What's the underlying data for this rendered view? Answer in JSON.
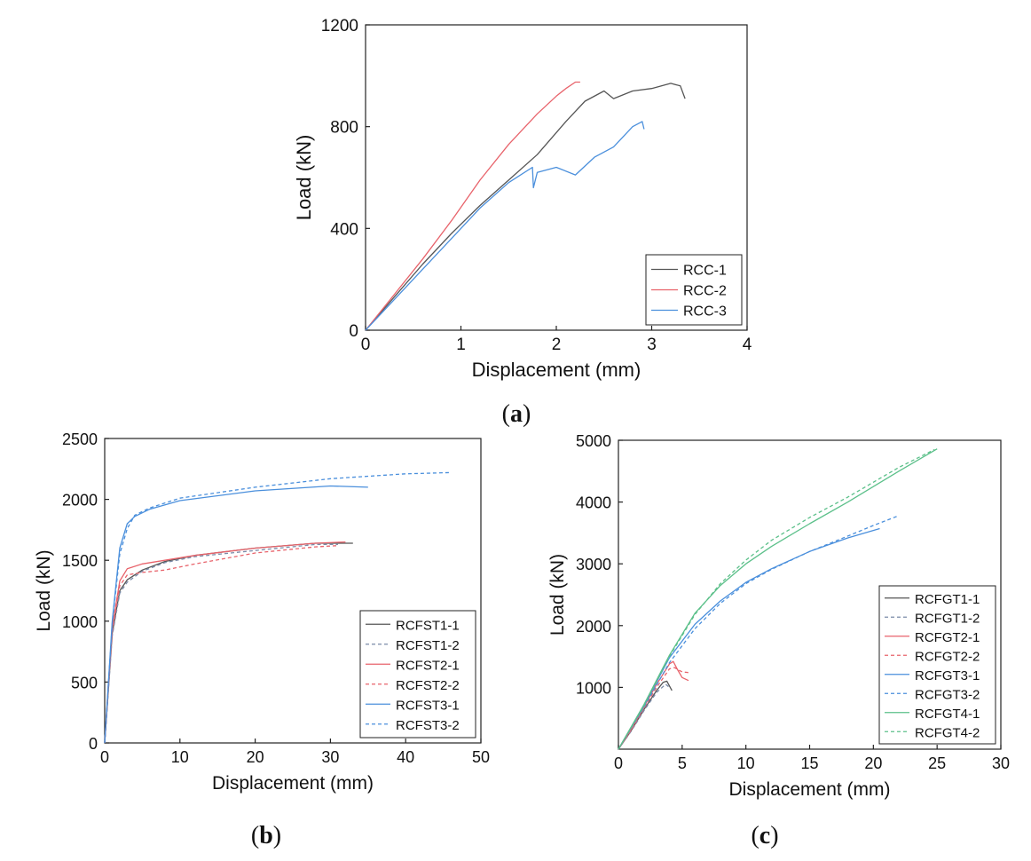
{
  "figure_labels": [
    "(a)",
    "(b)",
    "(c)"
  ],
  "chart_data": [
    {
      "id": "a",
      "type": "line",
      "panel_label": "(a)",
      "xlabel": "Displacement (mm)",
      "ylabel": "Load (kN)",
      "xlim": [
        0,
        4
      ],
      "ylim": [
        0,
        1200
      ],
      "xticks": [
        0,
        1,
        2,
        3,
        4
      ],
      "yticks": [
        0,
        400,
        800,
        1200
      ],
      "legend_position": "bottom-right",
      "series": [
        {
          "name": "RCC-1",
          "color": "#555555",
          "dash": "solid",
          "x": [
            0,
            0.3,
            0.6,
            0.9,
            1.2,
            1.5,
            1.8,
            2.1,
            2.3,
            2.5,
            2.6,
            2.8,
            3.0,
            3.2,
            3.3,
            3.35
          ],
          "y": [
            0,
            130,
            260,
            380,
            490,
            590,
            690,
            820,
            900,
            940,
            910,
            940,
            950,
            970,
            960,
            910
          ]
        },
        {
          "name": "RCC-2",
          "color": "#e8636b",
          "dash": "solid",
          "x": [
            0,
            0.3,
            0.6,
            0.9,
            1.2,
            1.5,
            1.8,
            2.0,
            2.1,
            2.2,
            2.25
          ],
          "y": [
            0,
            140,
            280,
            430,
            590,
            730,
            850,
            920,
            950,
            975,
            975
          ]
        },
        {
          "name": "RCC-3",
          "color": "#4a8fdc",
          "dash": "solid",
          "x": [
            0,
            0.3,
            0.6,
            0.9,
            1.2,
            1.5,
            1.75,
            1.76,
            1.8,
            2.0,
            2.2,
            2.4,
            2.45,
            2.6,
            2.8,
            2.9,
            2.92
          ],
          "y": [
            0,
            120,
            240,
            360,
            480,
            580,
            640,
            560,
            620,
            640,
            610,
            680,
            690,
            720,
            800,
            820,
            790
          ]
        }
      ]
    },
    {
      "id": "b",
      "type": "line",
      "panel_label": "(b)",
      "xlabel": "Displacement (mm)",
      "ylabel": "Load (kN)",
      "xlim": [
        0,
        50
      ],
      "ylim": [
        0,
        2500
      ],
      "xticks": [
        0,
        10,
        20,
        30,
        40,
        50
      ],
      "yticks": [
        0,
        500,
        1000,
        1500,
        2000,
        2500
      ],
      "legend_position": "bottom-right",
      "series": [
        {
          "name": "RCFST1-1",
          "color": "#555555",
          "dash": "solid",
          "x": [
            0,
            0.5,
            1,
            2,
            3,
            5,
            8,
            12,
            20,
            28,
            33
          ],
          "y": [
            0,
            450,
            900,
            1250,
            1340,
            1420,
            1490,
            1540,
            1600,
            1640,
            1640
          ]
        },
        {
          "name": "RCFST1-2",
          "color": "#7a8aa8",
          "dash": "dashed",
          "x": [
            0,
            0.5,
            1,
            2,
            3,
            5,
            8,
            12,
            20,
            28,
            31
          ],
          "y": [
            0,
            430,
            880,
            1230,
            1320,
            1410,
            1480,
            1530,
            1580,
            1630,
            1630
          ]
        },
        {
          "name": "RCFST2-1",
          "color": "#e8636b",
          "dash": "solid",
          "x": [
            0,
            0.5,
            1,
            2,
            3,
            5,
            8,
            12,
            20,
            28,
            32
          ],
          "y": [
            0,
            480,
            950,
            1330,
            1430,
            1470,
            1500,
            1540,
            1600,
            1640,
            1650
          ]
        },
        {
          "name": "RCFST2-2",
          "color": "#e8636b",
          "dash": "dashed",
          "x": [
            0,
            0.5,
            1,
            2,
            3,
            5,
            8,
            12,
            20,
            28,
            31
          ],
          "y": [
            0,
            460,
            920,
            1290,
            1380,
            1400,
            1420,
            1470,
            1560,
            1610,
            1620
          ]
        },
        {
          "name": "RCFST3-1",
          "color": "#4a8fdc",
          "dash": "solid",
          "x": [
            0,
            0.5,
            1,
            2,
            3,
            4,
            6,
            10,
            20,
            30,
            35
          ],
          "y": [
            0,
            500,
            1000,
            1600,
            1800,
            1860,
            1920,
            1990,
            2070,
            2110,
            2100
          ]
        },
        {
          "name": "RCFST3-2",
          "color": "#4a8fdc",
          "dash": "dashed",
          "x": [
            0,
            0.5,
            1,
            2,
            3,
            4,
            6,
            10,
            20,
            30,
            40,
            46
          ],
          "y": [
            0,
            480,
            980,
            1550,
            1760,
            1870,
            1930,
            2010,
            2100,
            2170,
            2210,
            2220
          ]
        }
      ]
    },
    {
      "id": "c",
      "type": "line",
      "panel_label": "(c)",
      "xlabel": "Displacement (mm)",
      "ylabel": "Load (kN)",
      "xlim": [
        0,
        30
      ],
      "ylim": [
        0,
        5000
      ],
      "xticks": [
        0,
        5,
        10,
        15,
        20,
        25,
        30
      ],
      "yticks": [
        1000,
        2000,
        3000,
        4000,
        5000
      ],
      "legend_position": "bottom-right",
      "series": [
        {
          "name": "RCFGT1-1",
          "color": "#555555",
          "dash": "solid",
          "x": [
            0,
            1,
            2,
            3,
            3.5,
            3.8,
            4.2
          ],
          "y": [
            0,
            300,
            640,
            950,
            1080,
            1100,
            950
          ]
        },
        {
          "name": "RCFGT1-2",
          "color": "#7a8aa8",
          "dash": "dashed",
          "x": [
            0,
            1,
            2,
            3,
            3.7,
            4.0
          ],
          "y": [
            0,
            290,
            620,
            920,
            1050,
            1000
          ]
        },
        {
          "name": "RCFGT2-1",
          "color": "#e8636b",
          "dash": "solid",
          "x": [
            0,
            1,
            2,
            3,
            4,
            4.3,
            4.6,
            5.0,
            5.5
          ],
          "y": [
            0,
            320,
            680,
            1050,
            1380,
            1420,
            1300,
            1160,
            1110
          ]
        },
        {
          "name": "RCFGT2-2",
          "color": "#e8636b",
          "dash": "dashed",
          "x": [
            0,
            1,
            2,
            3,
            4,
            4.4,
            5.0,
            5.5
          ],
          "y": [
            0,
            310,
            660,
            1000,
            1300,
            1320,
            1250,
            1240
          ]
        },
        {
          "name": "RCFGT3-1",
          "color": "#4a8fdc",
          "dash": "solid",
          "x": [
            0,
            2,
            4,
            6,
            8,
            10,
            12,
            15,
            18,
            20.5
          ],
          "y": [
            0,
            700,
            1480,
            2020,
            2400,
            2700,
            2920,
            3200,
            3420,
            3570
          ]
        },
        {
          "name": "RCFGT3-2",
          "color": "#4a8fdc",
          "dash": "dashed",
          "x": [
            0,
            2,
            4,
            6,
            8,
            10,
            12,
            15,
            18,
            20,
            22
          ],
          "y": [
            0,
            680,
            1400,
            1950,
            2360,
            2680,
            2910,
            3200,
            3450,
            3620,
            3780
          ]
        },
        {
          "name": "RCFGT4-1",
          "color": "#5cc08a",
          "dash": "solid",
          "x": [
            0,
            2,
            4,
            6,
            8,
            10,
            12,
            15,
            18,
            20,
            22,
            25
          ],
          "y": [
            0,
            720,
            1520,
            2200,
            2650,
            3000,
            3280,
            3650,
            4000,
            4250,
            4500,
            4860
          ]
        },
        {
          "name": "RCFGT4-2",
          "color": "#5cc08a",
          "dash": "dashed",
          "x": [
            0,
            2,
            4,
            6,
            8,
            10,
            12,
            15,
            18,
            20,
            22,
            24.8
          ],
          "y": [
            0,
            700,
            1500,
            2180,
            2680,
            3060,
            3380,
            3750,
            4080,
            4320,
            4560,
            4850
          ]
        }
      ]
    }
  ]
}
